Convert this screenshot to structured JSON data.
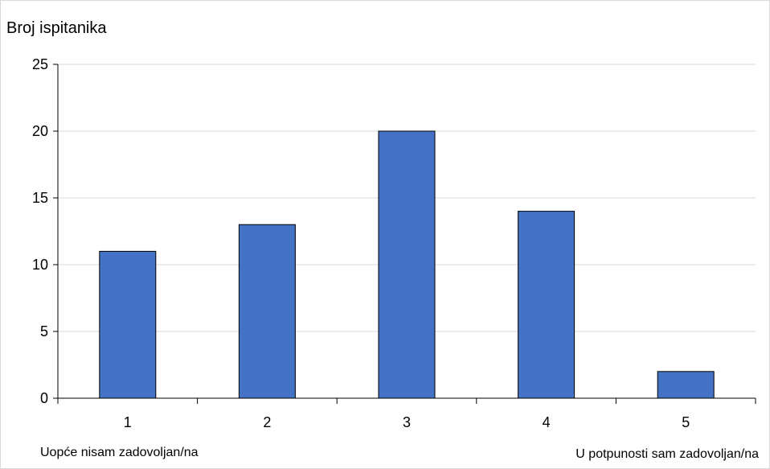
{
  "chart_data": {
    "type": "bar",
    "categories": [
      "1",
      "2",
      "3",
      "4",
      "5"
    ],
    "values": [
      11,
      13,
      20,
      14,
      2
    ],
    "ylabel": "Broj ispitanika",
    "xlabel": "",
    "ylim": [
      0,
      25
    ],
    "yticks": [
      0,
      5,
      10,
      15,
      20,
      25
    ],
    "grid": true,
    "bar_color": "#4472c4",
    "annotations": {
      "left": "Uopće nisam zadovoljan/na",
      "right": "U potpunosti sam zadovoljan/na"
    }
  }
}
